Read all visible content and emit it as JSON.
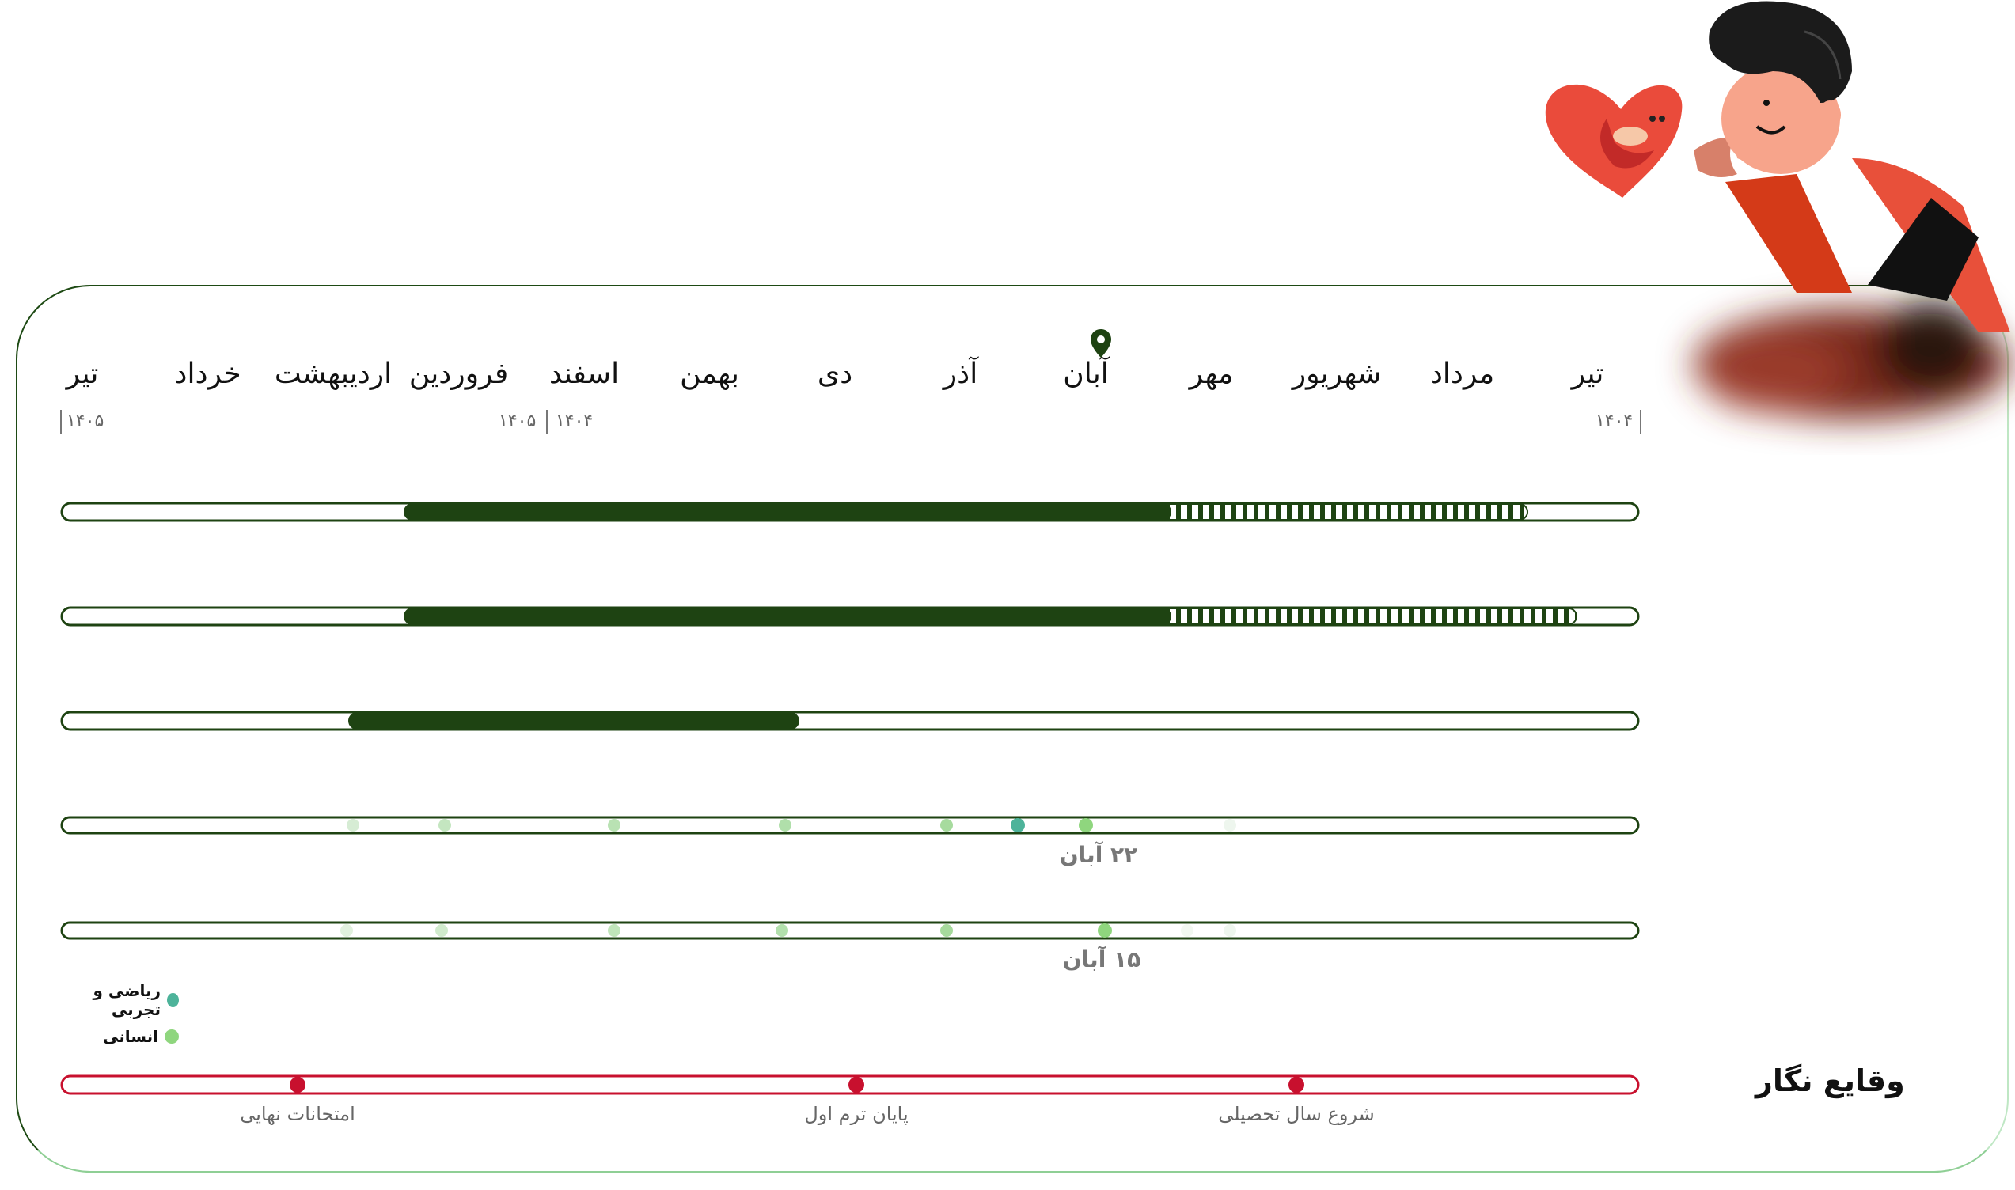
{
  "months": [
    {
      "label": "تیر",
      "key": "tir-1404"
    },
    {
      "label": "مرداد",
      "key": "mordad"
    },
    {
      "label": "شهریور",
      "key": "shahrivar"
    },
    {
      "label": "مهر",
      "key": "mehr"
    },
    {
      "label": "آبان",
      "key": "aban"
    },
    {
      "label": "آذر",
      "key": "azar"
    },
    {
      "label": "دی",
      "key": "dey"
    },
    {
      "label": "بهمن",
      "key": "bahman"
    },
    {
      "label": "اسفند",
      "key": "esfand"
    },
    {
      "label": "فروردین",
      "key": "farvardin"
    },
    {
      "label": "اردیبهشت",
      "key": "ordibehesht"
    },
    {
      "label": "خرداد",
      "key": "khordad"
    },
    {
      "label": "تیر",
      "key": "tir-1405"
    }
  ],
  "years": {
    "start_right": "۱۴۰۴",
    "boundary_right": "۱۴۰۴",
    "boundary_left": "۱۴۰۵",
    "end_left": "۱۴۰۵"
  },
  "current_month": "آبان",
  "dot_labels": {
    "row4": "۲۲ آبان",
    "row5": "۱۵ آبان"
  },
  "legend": [
    {
      "label": "ریاضی و تجربی",
      "color": "#4db39a"
    },
    {
      "label": "انسانی",
      "color": "#8fd67e"
    }
  ],
  "events": {
    "title": "وقایع نگار",
    "items": [
      {
        "label": "شروع سال تحصیلی"
      },
      {
        "label": "پایان ترم اول"
      },
      {
        "label": "امتحانات نهایی"
      }
    ]
  },
  "colors": {
    "dark_green": "#1e4312",
    "event_red": "#c8102e",
    "accent_blue_green": "#4db39a",
    "accent_light_green": "#8fd67e"
  }
}
